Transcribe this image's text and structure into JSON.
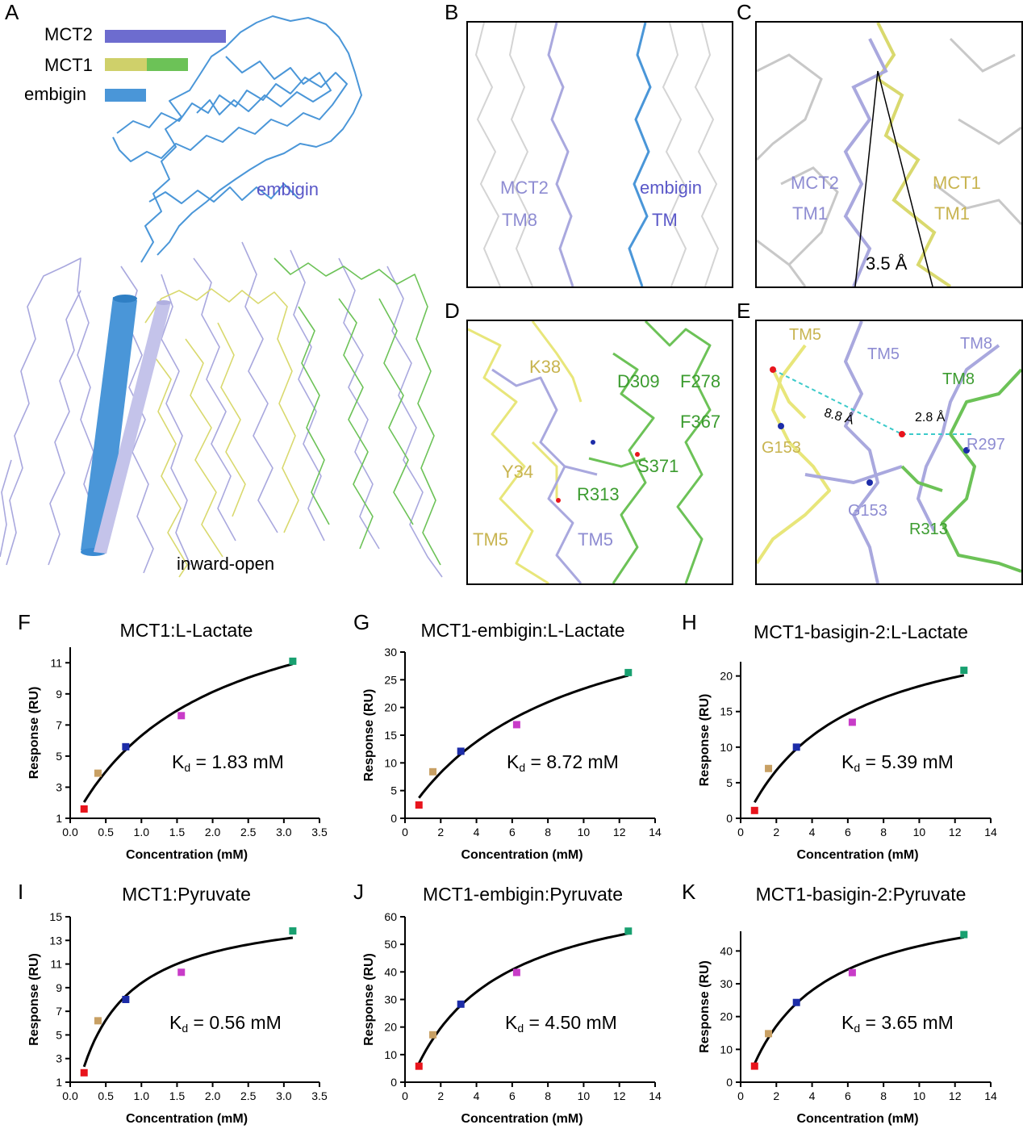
{
  "panels": {
    "A": "A",
    "B": "B",
    "C": "C",
    "D": "D",
    "E": "E",
    "F": "F",
    "G": "G",
    "H": "H",
    "I": "I",
    "J": "J",
    "K": "K"
  },
  "legend": {
    "items": [
      {
        "label": "MCT2",
        "colors": [
          "#6d6ccf"
        ]
      },
      {
        "label": "MCT1",
        "colors": [
          "#cfd06a",
          "#6cc257"
        ]
      },
      {
        "label": "embigin",
        "colors": [
          "#4a96d8"
        ]
      }
    ]
  },
  "panel_a": {
    "embigin_label": "embigin",
    "state_label": "inward-open"
  },
  "panel_b": {
    "mct2_a": "MCT2",
    "mct2_b": "TM8",
    "emb_a": "embigin",
    "emb_b": "TM"
  },
  "panel_c": {
    "mct2_a": "MCT2",
    "mct2_b": "TM1",
    "mct1_a": "MCT1",
    "mct1_b": "TM1",
    "dist": "3.5 Å"
  },
  "panel_d": {
    "k38": "K38",
    "d309": "D309",
    "f278": "F278",
    "f367": "F367",
    "y34": "Y34",
    "s371": "S371",
    "r313": "R313",
    "tm5_y": "TM5",
    "tm5_p": "TM5"
  },
  "panel_e": {
    "tm5_y": "TM5",
    "tm5_p": "TM5",
    "tm8_p": "TM8",
    "tm8_g": "TM8",
    "g153_y": "G153",
    "dist1": "8.8 Å",
    "dist2": "2.8 Å",
    "r297": "R297",
    "g153_p": "G153",
    "r313": "R313"
  },
  "colors": {
    "yellow": "#cfd06a",
    "green": "#6cc257",
    "purple": "#9c9ad8",
    "blue": "#4a96d8",
    "gray": "#c8c8c8",
    "pt1": "#e8141c",
    "pt2": "#c8a064",
    "pt3": "#1c2ca8",
    "pt4": "#c83cc8",
    "pt5": "#18a070"
  },
  "chart_data": [
    {
      "id": "F",
      "type": "scatter",
      "title": "MCT1:L-Lactate",
      "kd_value": "1.83",
      "kd_prefix": "K",
      "kd_sub": "d",
      "kd_unit": "mM",
      "xlabel": "Concentration (mM)",
      "ylabel": "Response (RU)",
      "xlim": [
        0,
        3.5
      ],
      "ylim": [
        1,
        12
      ],
      "xticks": [
        0.0,
        0.5,
        1.0,
        1.5,
        2.0,
        2.5,
        3.0,
        3.5
      ],
      "xtick_labels": [
        "0.0",
        "0.5",
        "1.0",
        "1.5",
        "2.0",
        "2.5",
        "3.0",
        "3.5"
      ],
      "yticks": [
        1,
        3,
        5,
        7,
        9,
        11
      ],
      "ytick_labels": [
        "1",
        "3",
        "5",
        "7",
        "9",
        "11"
      ],
      "x": [
        0.195,
        0.39,
        0.78,
        1.56,
        3.125
      ],
      "y": [
        1.6,
        3.9,
        5.6,
        7.6,
        11.1
      ]
    },
    {
      "id": "G",
      "type": "scatter",
      "title": "MCT1-embigin:L-Lactate",
      "kd_value": "8.72",
      "kd_prefix": "K",
      "kd_sub": "d",
      "kd_unit": "mM",
      "xlabel": "Concentration (mM)",
      "ylabel": "Response (RU)",
      "xlim": [
        0,
        14
      ],
      "ylim": [
        0,
        30
      ],
      "xticks": [
        0,
        2,
        4,
        6,
        8,
        10,
        12,
        14
      ],
      "xtick_labels": [
        "0",
        "2",
        "4",
        "6",
        "8",
        "10",
        "12",
        "14"
      ],
      "yticks": [
        0,
        5,
        10,
        15,
        20,
        25,
        30
      ],
      "ytick_labels": [
        "0",
        "5",
        "10",
        "15",
        "20",
        "25",
        "30"
      ],
      "x": [
        0.78,
        1.56,
        3.125,
        6.25,
        12.5
      ],
      "y": [
        2.4,
        8.4,
        12.1,
        16.9,
        26.3
      ]
    },
    {
      "id": "H",
      "type": "scatter",
      "title": "MCT1-basigin-2:L-Lactate",
      "kd_value": "5.39",
      "kd_prefix": "K",
      "kd_sub": "d",
      "kd_unit": "mM",
      "xlabel": "Concentration (mM)",
      "ylabel": "Response (RU)",
      "xlim": [
        0,
        14
      ],
      "ylim": [
        0,
        22
      ],
      "xticks": [
        0,
        2,
        4,
        6,
        8,
        10,
        12,
        14
      ],
      "xtick_labels": [
        "0",
        "2",
        "4",
        "6",
        "8",
        "10",
        "12",
        "14"
      ],
      "yticks": [
        0,
        5,
        10,
        15,
        20
      ],
      "ytick_labels": [
        "0",
        "5",
        "10",
        "15",
        "20"
      ],
      "x": [
        0.78,
        1.56,
        3.125,
        6.25,
        12.5
      ],
      "y": [
        1.1,
        7.0,
        10.0,
        13.5,
        20.8
      ]
    },
    {
      "id": "I",
      "type": "scatter",
      "title": "MCT1:Pyruvate",
      "kd_value": "0.56",
      "kd_prefix": "K",
      "kd_sub": "d",
      "kd_unit": "mM",
      "xlabel": "Concentration (mM)",
      "ylabel": "Response (RU)",
      "xlim": [
        0,
        3.5
      ],
      "ylim": [
        1,
        15
      ],
      "xticks": [
        0.0,
        0.5,
        1.0,
        1.5,
        2.0,
        2.5,
        3.0,
        3.5
      ],
      "xtick_labels": [
        "0.0",
        "0.5",
        "1.0",
        "1.5",
        "2.0",
        "2.5",
        "3.0",
        "3.5"
      ],
      "yticks": [
        1,
        3,
        5,
        7,
        9,
        11,
        13,
        15
      ],
      "ytick_labels": [
        "1",
        "3",
        "5",
        "7",
        "9",
        "11",
        "13",
        "15"
      ],
      "x": [
        0.195,
        0.39,
        0.78,
        1.56,
        3.125
      ],
      "y": [
        1.8,
        6.2,
        8.0,
        10.3,
        13.8
      ]
    },
    {
      "id": "J",
      "type": "scatter",
      "title": "MCT1-embigin:Pyruvate",
      "kd_value": "4.50",
      "kd_prefix": "K",
      "kd_sub": "d",
      "kd_unit": "mM",
      "xlabel": "Concentration (mM)",
      "ylabel": "Response (RU)",
      "xlim": [
        0,
        14
      ],
      "ylim": [
        0,
        60
      ],
      "xticks": [
        0,
        2,
        4,
        6,
        8,
        10,
        12,
        14
      ],
      "xtick_labels": [
        "0",
        "2",
        "4",
        "6",
        "8",
        "10",
        "12",
        "14"
      ],
      "yticks": [
        0,
        10,
        20,
        30,
        40,
        50,
        60
      ],
      "ytick_labels": [
        "0",
        "10",
        "20",
        "30",
        "40",
        "50",
        "60"
      ],
      "x": [
        0.78,
        1.56,
        3.125,
        6.25,
        12.5
      ],
      "y": [
        5.8,
        17.2,
        28.3,
        39.8,
        54.8
      ]
    },
    {
      "id": "K",
      "type": "scatter",
      "title": "MCT1-basigin-2:Pyruvate",
      "kd_value": "3.65",
      "kd_prefix": "K",
      "kd_sub": "d",
      "kd_unit": "mM",
      "xlabel": "Concentration (mM)",
      "ylabel": "Response (RU)",
      "xlim": [
        0,
        14
      ],
      "ylim": [
        0,
        46
      ],
      "xticks": [
        0,
        2,
        4,
        6,
        8,
        10,
        12,
        14
      ],
      "xtick_labels": [
        "0",
        "2",
        "4",
        "6",
        "8",
        "10",
        "12",
        "14"
      ],
      "yticks": [
        0,
        10,
        20,
        30,
        40
      ],
      "ytick_labels": [
        "0",
        "10",
        "20",
        "30",
        "40"
      ],
      "x": [
        0.78,
        1.56,
        3.125,
        6.25,
        12.5
      ],
      "y": [
        4.9,
        14.8,
        24.3,
        33.4,
        45.0
      ]
    }
  ]
}
